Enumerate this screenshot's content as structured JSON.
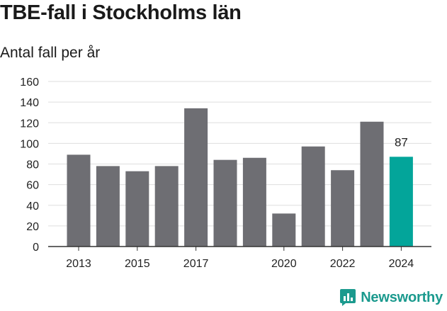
{
  "title": "TBE-fall i Stockholms län",
  "subtitle": "Antal fall per år",
  "brand": {
    "name": "Newsworthy",
    "icon": "newsworthy-logo-icon",
    "color": "#1b9a8e"
  },
  "chart_data": {
    "type": "bar",
    "categories": [
      "2013",
      "2014",
      "2015",
      "2016",
      "2017",
      "2018",
      "2019",
      "2020",
      "2021",
      "2022",
      "2023",
      "2024"
    ],
    "x_tick_labels": [
      "2013",
      "2015",
      "2017",
      "2020",
      "2022",
      "2024"
    ],
    "values": [
      89,
      78,
      73,
      78,
      134,
      84,
      86,
      32,
      97,
      74,
      121,
      87
    ],
    "highlight": {
      "category": "2024",
      "value": 87,
      "label": "87"
    },
    "ylim": [
      0,
      160
    ],
    "y_ticks": [
      0,
      20,
      40,
      60,
      80,
      100,
      120,
      140,
      160
    ],
    "grid": true,
    "colors": {
      "bar": "#6e6e73",
      "highlight": "#03a59a",
      "grid": "#dedede",
      "axis": "#333333"
    }
  }
}
